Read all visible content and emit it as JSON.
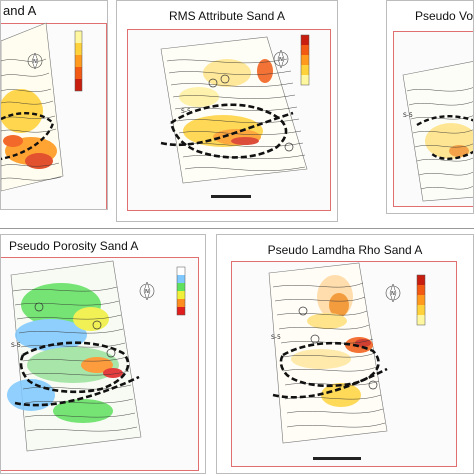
{
  "figure": {
    "panels": [
      {
        "id": "p1",
        "title": "and A",
        "colorbar": "heat"
      },
      {
        "id": "p2",
        "title": "RMS Attribute Sand A",
        "colorbar": "heat"
      },
      {
        "id": "p3",
        "title": "Pseudo Vo",
        "colorbar": "heat"
      },
      {
        "id": "p4",
        "title": "Pseudo Porosity Sand A",
        "colorbar": "rainbow"
      },
      {
        "id": "p5",
        "title": "Pseudo Lamdha Rho Sand A",
        "colorbar": "heat"
      }
    ]
  },
  "colors": {
    "heat": [
      "#fff7a0",
      "#ffd23c",
      "#ff9a1e",
      "#f25a14",
      "#c81e10"
    ],
    "rainbow": [
      "#ffffff",
      "#7ec8ff",
      "#5fe05f",
      "#f0f03a",
      "#ff8c1e",
      "#e01e1e"
    ],
    "fault_line": "#111111",
    "contour": "#333333",
    "frame": "#e07070"
  },
  "icons": {
    "north": "north-arrow-icon",
    "scale": "scale-bar-icon"
  }
}
